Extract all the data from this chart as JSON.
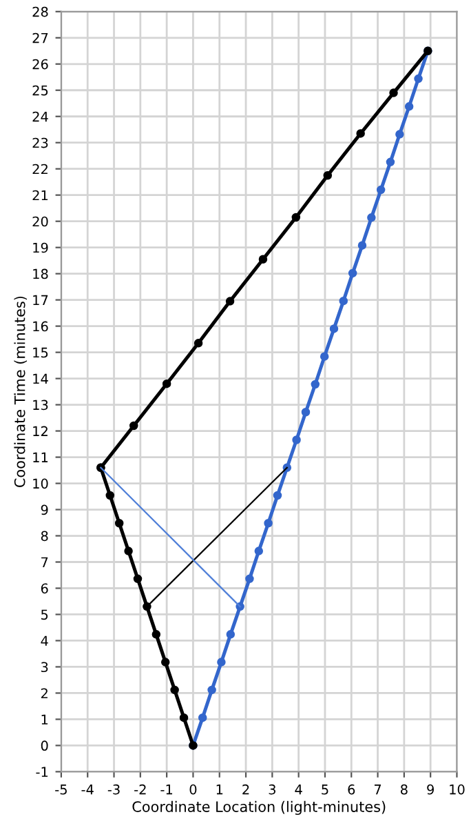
{
  "chart_data": {
    "type": "line",
    "xlabel": "Coordinate Location (light-minutes)",
    "ylabel": "Coordinate Time (minutes)",
    "xlim": [
      -5,
      10
    ],
    "ylim": [
      -1,
      28
    ],
    "xticks": [
      -5,
      -4,
      -3,
      -2,
      -1,
      0,
      1,
      2,
      3,
      4,
      5,
      6,
      7,
      8,
      9,
      10
    ],
    "yticks": [
      -1,
      0,
      1,
      2,
      3,
      4,
      5,
      6,
      7,
      8,
      9,
      10,
      11,
      12,
      13,
      14,
      15,
      16,
      17,
      18,
      19,
      20,
      21,
      22,
      23,
      24,
      25,
      26,
      27,
      28
    ],
    "grid": true,
    "line_style": "solid",
    "series": [
      {
        "color": "#3366cc",
        "marker": "circle",
        "x": [
          0,
          0.36,
          0.71,
          1.07,
          1.42,
          1.78,
          2.14,
          2.49,
          2.85,
          3.2,
          3.56,
          3.92,
          4.27,
          4.63,
          4.98,
          5.34,
          5.7,
          6.05,
          6.41,
          6.76,
          7.12,
          7.48,
          7.83,
          8.19,
          8.54,
          8.9
        ],
        "values": [
          0,
          1.06,
          2.12,
          3.18,
          4.24,
          5.3,
          6.36,
          7.42,
          8.48,
          9.54,
          10.6,
          11.66,
          12.72,
          13.78,
          14.84,
          15.9,
          16.96,
          18.02,
          19.08,
          20.14,
          21.2,
          22.26,
          23.32,
          24.38,
          25.44,
          26.5
        ]
      },
      {
        "color": "#000000",
        "marker": "circle",
        "x": [
          0,
          -0.35,
          -0.7,
          -1.05,
          -1.4,
          -1.75,
          -2.1,
          -2.45,
          -2.8,
          -3.15,
          -3.5
        ],
        "values": [
          0,
          1.06,
          2.12,
          3.18,
          4.24,
          5.3,
          6.36,
          7.42,
          8.48,
          9.54,
          10.6
        ]
      },
      {
        "color": "#000000",
        "marker": "circle",
        "x": [
          -3.5,
          -2.25,
          -1.0,
          0.2,
          1.4,
          2.65,
          3.9,
          5.1,
          6.35,
          7.6,
          8.9
        ],
        "values": [
          10.6,
          12.2,
          13.8,
          15.35,
          16.95,
          18.55,
          20.15,
          21.75,
          23.35,
          24.9,
          26.5
        ]
      },
      {
        "color": "#000000",
        "marker": "none",
        "x": [
          -1.75,
          3.56
        ],
        "values": [
          5.3,
          10.6
        ]
      },
      {
        "color": "#4f7fd8",
        "marker": "none",
        "x": [
          -3.5,
          1.78
        ],
        "values": [
          10.6,
          5.3
        ]
      }
    ]
  }
}
